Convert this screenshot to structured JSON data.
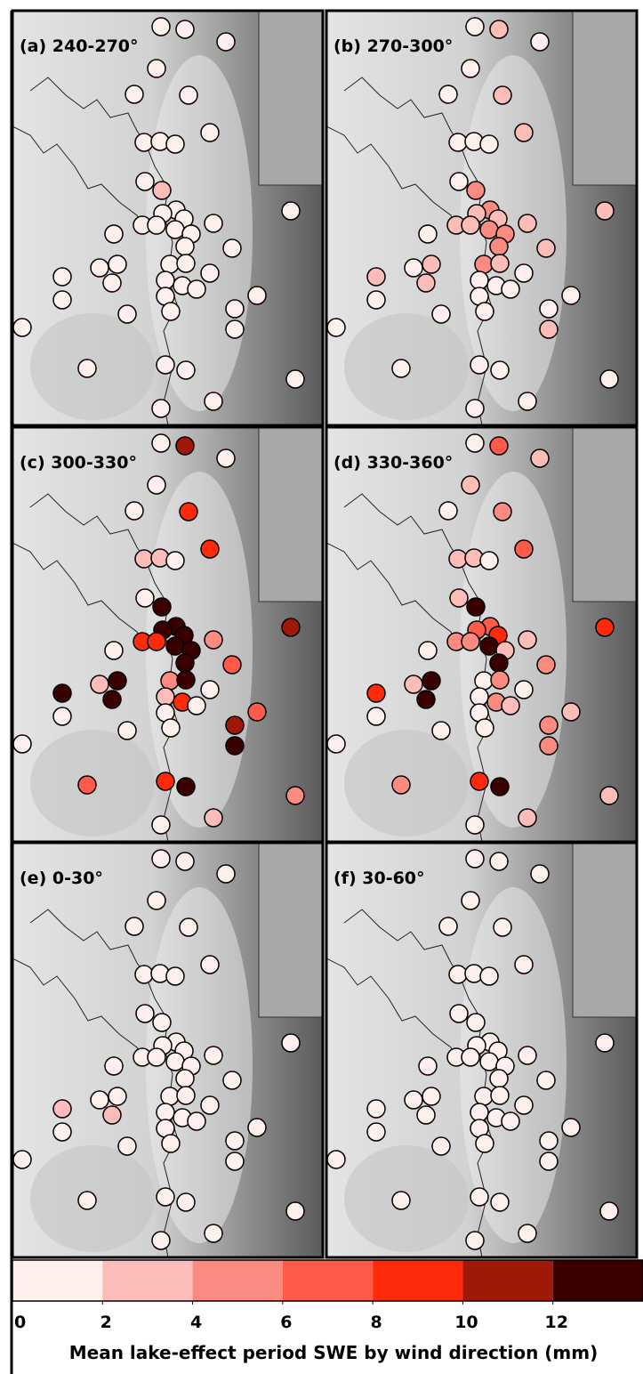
{
  "chart_data": {
    "type": "map",
    "panels": [
      {
        "title": "(a) 240-270°",
        "values": [
          1,
          1,
          1,
          1,
          1,
          1,
          1,
          1,
          1,
          1,
          1,
          3,
          1,
          1,
          1,
          1,
          1,
          1,
          1,
          1,
          1,
          1,
          1,
          1,
          1,
          1,
          1,
          1,
          1,
          1,
          1,
          1,
          1,
          1,
          1,
          1,
          1,
          1,
          1,
          1,
          1,
          1,
          1,
          1,
          1,
          1,
          1,
          1
        ]
      },
      {
        "title": "(b) 270-300°",
        "values": [
          1,
          3,
          1,
          1,
          1,
          3,
          3,
          1,
          1,
          1,
          1,
          5,
          3,
          5,
          3,
          3,
          3,
          3,
          3,
          1,
          5,
          5,
          5,
          3,
          3,
          1,
          3,
          5,
          3,
          1,
          3,
          1,
          1,
          1,
          1,
          1,
          1,
          1,
          1,
          1,
          1,
          3,
          1,
          1,
          1,
          1,
          1,
          1
        ]
      },
      {
        "title": "(c) 300-330°",
        "values": [
          1,
          11,
          1,
          1,
          1,
          9,
          9,
          3,
          3,
          1,
          1,
          13,
          11,
          13,
          13,
          9,
          9,
          13,
          5,
          1,
          13,
          13,
          13,
          7,
          13,
          3,
          13,
          5,
          13,
          1,
          13,
          3,
          9,
          1,
          1,
          1,
          7,
          1,
          11,
          1,
          1,
          13,
          9,
          7,
          13,
          5,
          3,
          1
        ]
      },
      {
        "title": "(d) 330-360°",
        "values": [
          1,
          7,
          3,
          3,
          1,
          5,
          7,
          3,
          3,
          1,
          3,
          13,
          9,
          7,
          7,
          5,
          5,
          9,
          3,
          1,
          13,
          3,
          13,
          5,
          13,
          3,
          9,
          1,
          5,
          1,
          13,
          1,
          5,
          3,
          1,
          1,
          3,
          1,
          5,
          1,
          1,
          5,
          9,
          5,
          13,
          3,
          3,
          1
        ]
      },
      {
        "title": "(e) 0-30°",
        "values": [
          1,
          1,
          1,
          1,
          1,
          1,
          1,
          1,
          1,
          1,
          1,
          1,
          1,
          1,
          1,
          1,
          1,
          1,
          1,
          1,
          1,
          1,
          1,
          1,
          1,
          1,
          3,
          1,
          1,
          1,
          3,
          1,
          1,
          1,
          1,
          1,
          1,
          1,
          1,
          1,
          1,
          1,
          1,
          1,
          1,
          1,
          1,
          1
        ]
      },
      {
        "title": "(f) 30-60°",
        "values": [
          1,
          1,
          1,
          1,
          1,
          1,
          1,
          1,
          1,
          1,
          1,
          1,
          1,
          1,
          1,
          1,
          1,
          1,
          1,
          1,
          1,
          1,
          1,
          1,
          1,
          1,
          1,
          1,
          1,
          1,
          1,
          1,
          1,
          1,
          1,
          1,
          1,
          1,
          1,
          1,
          1,
          1,
          1,
          1,
          1,
          1,
          1,
          1
        ]
      }
    ],
    "colorbar": {
      "bounds": [
        0,
        2,
        4,
        6,
        8,
        10,
        12,
        14
      ],
      "colors": [
        "#fff0ee",
        "#fcbcb8",
        "#fb8a80",
        "#ff5a4a",
        "#ff2a0a",
        "#a01808",
        "#3a0000"
      ],
      "ticks": [
        0,
        2,
        4,
        6,
        8,
        10,
        12
      ],
      "label": "Mean lake-effect period SWE by wind direction (mm)"
    }
  }
}
